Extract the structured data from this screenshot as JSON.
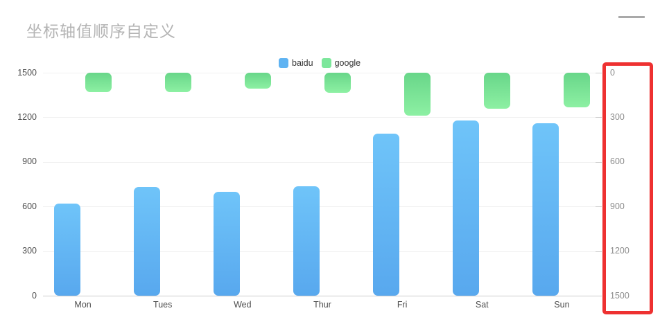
{
  "title": "坐标轴值顺序自定义",
  "toolbox": {
    "menu_icon": "hamburger-icon"
  },
  "legend": [
    {
      "name": "baidu",
      "color": "#5fb3f2"
    },
    {
      "name": "google",
      "color": "#7ce79b"
    }
  ],
  "chart_data": {
    "type": "bar",
    "title": "坐标轴值顺序自定义",
    "categories": [
      "Mon",
      "Tues",
      "Wed",
      "Thur",
      "Fri",
      "Sat",
      "Sun"
    ],
    "series": [
      {
        "name": "baidu",
        "axis": "left",
        "values": [
          620,
          730,
          701,
          734,
          1090,
          1180,
          1160
        ],
        "gradient": [
          "#6fc4f9",
          "#58a8ee"
        ]
      },
      {
        "name": "google",
        "axis": "right-inverted",
        "values": [
          130,
          132,
          105,
          134,
          290,
          240,
          232
        ],
        "gradient": [
          "#68d689",
          "#8df0a3"
        ]
      }
    ],
    "left_axis": {
      "min": 0,
      "max": 1500,
      "inverted": false,
      "ticks_bottom_to_top": [
        "0",
        "300",
        "600",
        "900",
        "1200",
        "1500"
      ]
    },
    "right_axis": {
      "min": 0,
      "max": 1500,
      "inverted": true,
      "ticks_top_to_bottom": [
        "0",
        "300",
        "600",
        "900",
        "1200",
        "1500"
      ],
      "highlight_color": "#ee3131"
    },
    "grid": true,
    "legend_position": "top-center"
  }
}
